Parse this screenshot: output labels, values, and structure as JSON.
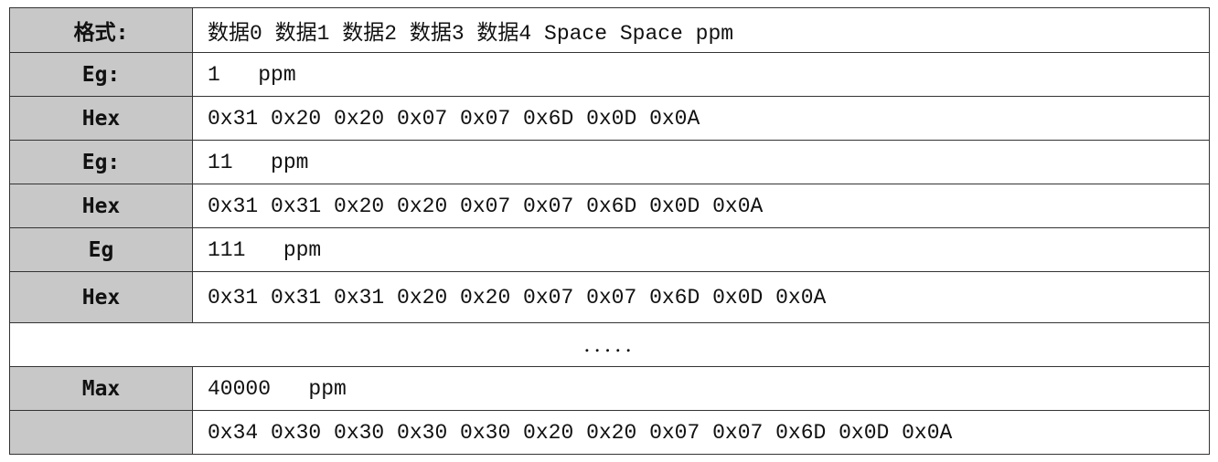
{
  "rows": [
    {
      "label": "格式:",
      "value": "数据0 数据1 数据2 数据3 数据4 Space Space ppm"
    },
    {
      "label": "Eg:",
      "value": "1   ppm"
    },
    {
      "label": "Hex",
      "value": "0x31 0x20 0x20 0x07 0x07 0x6D 0x0D 0x0A"
    },
    {
      "label": "Eg:",
      "value": "11   ppm"
    },
    {
      "label": "Hex",
      "value": "0x31 0x31 0x20 0x20 0x07 0x07 0x6D 0x0D 0x0A"
    },
    {
      "label": "Eg",
      "value": "111   ppm"
    },
    {
      "label": "Hex",
      "value": "0x31 0x31 0x31 0x20 0x20 0x07 0x07 0x6D 0x0D 0x0A"
    },
    {
      "ellipsis": "....."
    },
    {
      "label": "Max",
      "value": "40000   ppm"
    },
    {
      "label": "",
      "value": "0x34 0x30 0x30 0x30 0x30 0x20 0x20 0x07 0x07 0x6D 0x0D 0x0A"
    }
  ]
}
